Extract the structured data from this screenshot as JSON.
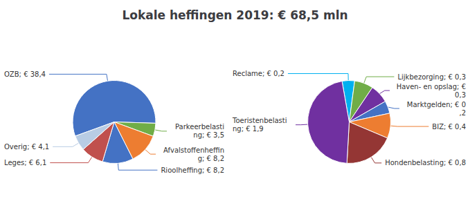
{
  "chart_data": [
    {
      "type": "pie",
      "title": "Lokale heffingen 2019: € 68,5 mln",
      "categories": [
        "OZB; € 38,4",
        "Parkeerbelasting; € 3,5",
        "Afvalstoffenheffing; € 8,2",
        "Rioolheffing; € 8,2",
        "Leges; € 6,1",
        "Overig; € 4,1"
      ],
      "values": [
        38.4,
        3.5,
        8.2,
        8.2,
        6.1,
        4.1
      ],
      "colors": [
        "#4472C4",
        "#70AD47",
        "#ED7D31",
        "#4472C4",
        "#C0504D",
        "#B8CCE4"
      ]
    },
    {
      "type": "pie",
      "categories": [
        "Reclame; € 0,2",
        "Lijkbezorging; € 0,3",
        "Haven- en opslag; € 0,3",
        "Marktgelden; € 0,2",
        "BIZ; € 0,4",
        "Hondenbelasting; € 0,8",
        "Toeristenbelasting; € 1,9"
      ],
      "values": [
        0.2,
        0.3,
        0.3,
        0.2,
        0.4,
        0.8,
        1.9
      ],
      "colors": [
        "#00B0F0",
        "#70AD47",
        "#7030A0",
        "#4472C4",
        "#ED7D31",
        "#943634",
        "#7030A0"
      ]
    }
  ]
}
